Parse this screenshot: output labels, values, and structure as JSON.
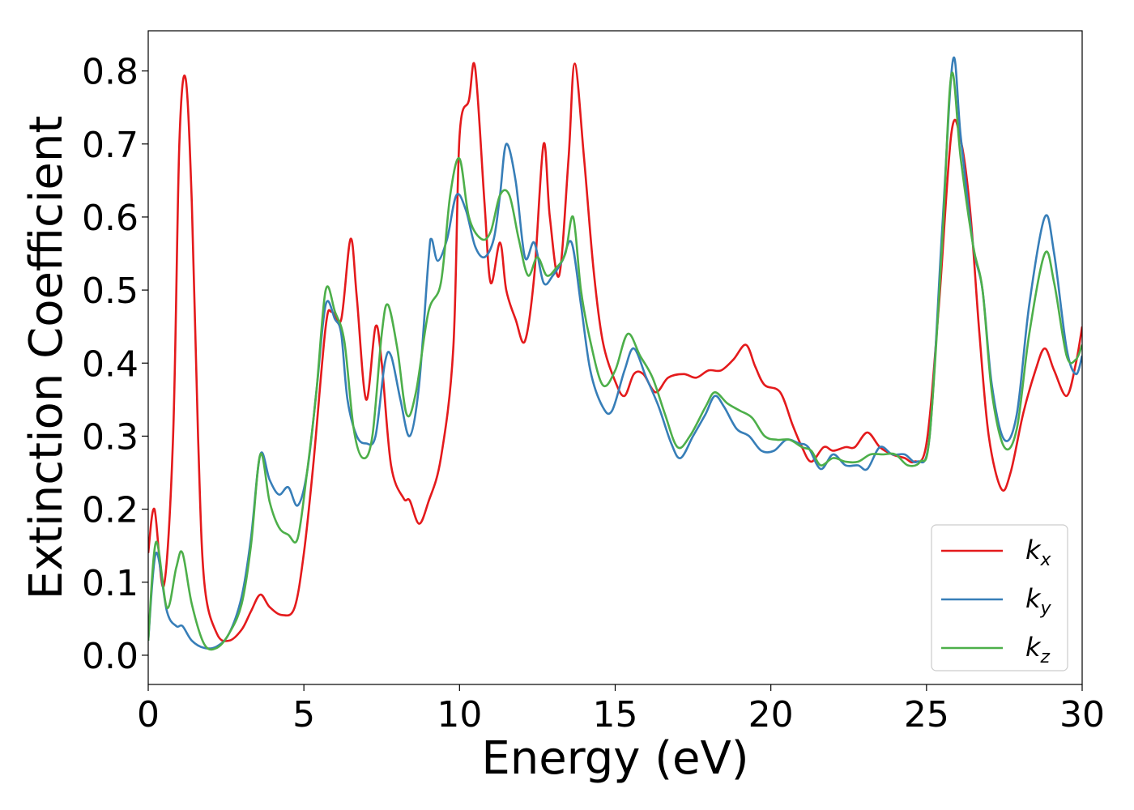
{
  "chart_data": {
    "type": "line",
    "title": "",
    "xlabel": "Energy (eV)",
    "ylabel": "Extinction Coefficient",
    "xlim": [
      0,
      30
    ],
    "ylim": [
      -0.04,
      0.855
    ],
    "xticks": [
      "0",
      "5",
      "10",
      "15",
      "20",
      "25",
      "30"
    ],
    "yticks": [
      "0.0",
      "0.1",
      "0.2",
      "0.3",
      "0.4",
      "0.5",
      "0.6",
      "0.7",
      "0.8"
    ],
    "grid": false,
    "legend_position": "bottom-right",
    "series": [
      {
        "name": "k",
        "subscript": "x",
        "color": "#e41a1c",
        "points": [
          [
            0,
            0.14
          ],
          [
            0.2,
            0.2
          ],
          [
            0.5,
            0.095
          ],
          [
            0.8,
            0.3
          ],
          [
            1.0,
            0.7
          ],
          [
            1.2,
            0.79
          ],
          [
            1.4,
            0.62
          ],
          [
            1.6,
            0.3
          ],
          [
            1.8,
            0.1
          ],
          [
            2.2,
            0.03
          ],
          [
            2.6,
            0.02
          ],
          [
            3.0,
            0.035
          ],
          [
            3.3,
            0.06
          ],
          [
            3.6,
            0.083
          ],
          [
            3.9,
            0.066
          ],
          [
            4.3,
            0.055
          ],
          [
            4.7,
            0.065
          ],
          [
            5.0,
            0.14
          ],
          [
            5.3,
            0.26
          ],
          [
            5.7,
            0.45
          ],
          [
            5.9,
            0.47
          ],
          [
            6.2,
            0.46
          ],
          [
            6.5,
            0.57
          ],
          [
            6.7,
            0.49
          ],
          [
            7.0,
            0.35
          ],
          [
            7.3,
            0.45
          ],
          [
            7.5,
            0.4
          ],
          [
            7.8,
            0.26
          ],
          [
            8.2,
            0.215
          ],
          [
            8.4,
            0.212
          ],
          [
            8.7,
            0.18
          ],
          [
            9.0,
            0.21
          ],
          [
            9.4,
            0.27
          ],
          [
            9.8,
            0.42
          ],
          [
            10.0,
            0.71
          ],
          [
            10.3,
            0.76
          ],
          [
            10.5,
            0.805
          ],
          [
            10.8,
            0.62
          ],
          [
            11.0,
            0.51
          ],
          [
            11.3,
            0.565
          ],
          [
            11.5,
            0.5
          ],
          [
            11.8,
            0.46
          ],
          [
            12.1,
            0.43
          ],
          [
            12.4,
            0.52
          ],
          [
            12.7,
            0.7
          ],
          [
            12.9,
            0.6
          ],
          [
            13.2,
            0.52
          ],
          [
            13.5,
            0.68
          ],
          [
            13.7,
            0.81
          ],
          [
            14.0,
            0.68
          ],
          [
            14.3,
            0.53
          ],
          [
            14.6,
            0.43
          ],
          [
            15.0,
            0.375
          ],
          [
            15.3,
            0.355
          ],
          [
            15.6,
            0.385
          ],
          [
            15.9,
            0.385
          ],
          [
            16.3,
            0.36
          ],
          [
            16.7,
            0.38
          ],
          [
            17.2,
            0.385
          ],
          [
            17.6,
            0.38
          ],
          [
            18.0,
            0.39
          ],
          [
            18.4,
            0.39
          ],
          [
            18.8,
            0.405
          ],
          [
            19.2,
            0.425
          ],
          [
            19.5,
            0.395
          ],
          [
            19.8,
            0.37
          ],
          [
            20.3,
            0.36
          ],
          [
            20.7,
            0.315
          ],
          [
            21.0,
            0.285
          ],
          [
            21.3,
            0.265
          ],
          [
            21.7,
            0.285
          ],
          [
            22.0,
            0.28
          ],
          [
            22.4,
            0.285
          ],
          [
            22.7,
            0.285
          ],
          [
            23.1,
            0.305
          ],
          [
            23.5,
            0.285
          ],
          [
            23.9,
            0.275
          ],
          [
            24.3,
            0.27
          ],
          [
            24.6,
            0.265
          ],
          [
            25.0,
            0.29
          ],
          [
            25.4,
            0.48
          ],
          [
            25.8,
            0.715
          ],
          [
            26.1,
            0.705
          ],
          [
            26.4,
            0.61
          ],
          [
            26.7,
            0.44
          ],
          [
            27.0,
            0.3
          ],
          [
            27.4,
            0.228
          ],
          [
            27.7,
            0.25
          ],
          [
            28.1,
            0.33
          ],
          [
            28.5,
            0.39
          ],
          [
            28.8,
            0.42
          ],
          [
            29.1,
            0.39
          ],
          [
            29.5,
            0.355
          ],
          [
            29.8,
            0.4
          ],
          [
            30.0,
            0.45
          ]
        ]
      },
      {
        "name": "k",
        "subscript": "y",
        "color": "#377eb8",
        "points": [
          [
            0,
            0.02
          ],
          [
            0.25,
            0.14
          ],
          [
            0.6,
            0.06
          ],
          [
            0.9,
            0.04
          ],
          [
            1.1,
            0.04
          ],
          [
            1.4,
            0.02
          ],
          [
            1.8,
            0.01
          ],
          [
            2.2,
            0.012
          ],
          [
            2.6,
            0.03
          ],
          [
            3.0,
            0.08
          ],
          [
            3.3,
            0.16
          ],
          [
            3.6,
            0.275
          ],
          [
            3.9,
            0.24
          ],
          [
            4.2,
            0.22
          ],
          [
            4.5,
            0.23
          ],
          [
            4.8,
            0.205
          ],
          [
            5.1,
            0.25
          ],
          [
            5.4,
            0.36
          ],
          [
            5.7,
            0.48
          ],
          [
            6.0,
            0.46
          ],
          [
            6.2,
            0.44
          ],
          [
            6.4,
            0.35
          ],
          [
            6.7,
            0.3
          ],
          [
            7.0,
            0.29
          ],
          [
            7.3,
            0.3
          ],
          [
            7.6,
            0.4
          ],
          [
            7.8,
            0.41
          ],
          [
            8.1,
            0.35
          ],
          [
            8.4,
            0.3
          ],
          [
            8.7,
            0.37
          ],
          [
            9.0,
            0.54
          ],
          [
            9.1,
            0.57
          ],
          [
            9.3,
            0.54
          ],
          [
            9.6,
            0.57
          ],
          [
            9.9,
            0.63
          ],
          [
            10.2,
            0.61
          ],
          [
            10.5,
            0.56
          ],
          [
            10.8,
            0.545
          ],
          [
            11.1,
            0.57
          ],
          [
            11.3,
            0.63
          ],
          [
            11.5,
            0.7
          ],
          [
            11.8,
            0.65
          ],
          [
            12.1,
            0.545
          ],
          [
            12.4,
            0.565
          ],
          [
            12.7,
            0.51
          ],
          [
            13.0,
            0.52
          ],
          [
            13.3,
            0.54
          ],
          [
            13.6,
            0.565
          ],
          [
            13.9,
            0.48
          ],
          [
            14.2,
            0.39
          ],
          [
            14.6,
            0.34
          ],
          [
            14.9,
            0.335
          ],
          [
            15.3,
            0.39
          ],
          [
            15.6,
            0.42
          ],
          [
            16.0,
            0.38
          ],
          [
            16.4,
            0.34
          ],
          [
            16.8,
            0.29
          ],
          [
            17.1,
            0.27
          ],
          [
            17.5,
            0.3
          ],
          [
            17.9,
            0.33
          ],
          [
            18.2,
            0.355
          ],
          [
            18.5,
            0.34
          ],
          [
            18.9,
            0.31
          ],
          [
            19.3,
            0.3
          ],
          [
            19.7,
            0.28
          ],
          [
            20.1,
            0.28
          ],
          [
            20.5,
            0.295
          ],
          [
            20.9,
            0.29
          ],
          [
            21.2,
            0.285
          ],
          [
            21.6,
            0.255
          ],
          [
            22.0,
            0.275
          ],
          [
            22.4,
            0.26
          ],
          [
            22.8,
            0.26
          ],
          [
            23.1,
            0.255
          ],
          [
            23.5,
            0.285
          ],
          [
            23.9,
            0.275
          ],
          [
            24.3,
            0.275
          ],
          [
            24.7,
            0.265
          ],
          [
            25.1,
            0.3
          ],
          [
            25.5,
            0.58
          ],
          [
            25.85,
            0.815
          ],
          [
            26.1,
            0.71
          ],
          [
            26.5,
            0.56
          ],
          [
            26.8,
            0.5
          ],
          [
            27.1,
            0.37
          ],
          [
            27.5,
            0.295
          ],
          [
            27.9,
            0.33
          ],
          [
            28.3,
            0.48
          ],
          [
            28.8,
            0.6
          ],
          [
            29.1,
            0.55
          ],
          [
            29.5,
            0.42
          ],
          [
            29.8,
            0.385
          ],
          [
            30.0,
            0.41
          ]
        ]
      },
      {
        "name": "k",
        "subscript": "z",
        "color": "#4daf4a",
        "points": [
          [
            0,
            0.02
          ],
          [
            0.25,
            0.155
          ],
          [
            0.6,
            0.065
          ],
          [
            0.9,
            0.12
          ],
          [
            1.1,
            0.14
          ],
          [
            1.4,
            0.07
          ],
          [
            1.8,
            0.015
          ],
          [
            2.2,
            0.01
          ],
          [
            2.6,
            0.03
          ],
          [
            3.0,
            0.07
          ],
          [
            3.3,
            0.15
          ],
          [
            3.6,
            0.275
          ],
          [
            3.9,
            0.21
          ],
          [
            4.2,
            0.175
          ],
          [
            4.5,
            0.165
          ],
          [
            4.8,
            0.16
          ],
          [
            5.1,
            0.25
          ],
          [
            5.4,
            0.36
          ],
          [
            5.7,
            0.5
          ],
          [
            6.0,
            0.47
          ],
          [
            6.3,
            0.43
          ],
          [
            6.6,
            0.31
          ],
          [
            6.9,
            0.27
          ],
          [
            7.2,
            0.3
          ],
          [
            7.5,
            0.44
          ],
          [
            7.7,
            0.48
          ],
          [
            8.0,
            0.42
          ],
          [
            8.3,
            0.33
          ],
          [
            8.6,
            0.36
          ],
          [
            9.0,
            0.47
          ],
          [
            9.4,
            0.51
          ],
          [
            9.7,
            0.63
          ],
          [
            10.0,
            0.68
          ],
          [
            10.3,
            0.6
          ],
          [
            10.7,
            0.57
          ],
          [
            11.0,
            0.58
          ],
          [
            11.3,
            0.63
          ],
          [
            11.6,
            0.63
          ],
          [
            11.9,
            0.57
          ],
          [
            12.2,
            0.52
          ],
          [
            12.5,
            0.545
          ],
          [
            12.8,
            0.52
          ],
          [
            13.1,
            0.53
          ],
          [
            13.4,
            0.55
          ],
          [
            13.65,
            0.6
          ],
          [
            13.9,
            0.5
          ],
          [
            14.2,
            0.43
          ],
          [
            14.6,
            0.37
          ],
          [
            15.0,
            0.39
          ],
          [
            15.4,
            0.44
          ],
          [
            15.8,
            0.41
          ],
          [
            16.2,
            0.38
          ],
          [
            16.6,
            0.33
          ],
          [
            17.0,
            0.285
          ],
          [
            17.4,
            0.3
          ],
          [
            17.9,
            0.34
          ],
          [
            18.2,
            0.36
          ],
          [
            18.6,
            0.345
          ],
          [
            19.0,
            0.335
          ],
          [
            19.4,
            0.325
          ],
          [
            19.8,
            0.3
          ],
          [
            20.2,
            0.295
          ],
          [
            20.6,
            0.295
          ],
          [
            21.0,
            0.285
          ],
          [
            21.3,
            0.28
          ],
          [
            21.6,
            0.26
          ],
          [
            22.0,
            0.27
          ],
          [
            22.4,
            0.265
          ],
          [
            22.8,
            0.265
          ],
          [
            23.2,
            0.275
          ],
          [
            23.6,
            0.275
          ],
          [
            24.0,
            0.275
          ],
          [
            24.4,
            0.26
          ],
          [
            24.8,
            0.265
          ],
          [
            25.1,
            0.3
          ],
          [
            25.5,
            0.56
          ],
          [
            25.8,
            0.795
          ],
          [
            26.1,
            0.68
          ],
          [
            26.5,
            0.56
          ],
          [
            26.8,
            0.5
          ],
          [
            27.1,
            0.36
          ],
          [
            27.5,
            0.285
          ],
          [
            27.9,
            0.31
          ],
          [
            28.3,
            0.44
          ],
          [
            28.8,
            0.55
          ],
          [
            29.1,
            0.51
          ],
          [
            29.5,
            0.41
          ],
          [
            29.8,
            0.405
          ],
          [
            30.0,
            0.425
          ]
        ]
      }
    ]
  }
}
